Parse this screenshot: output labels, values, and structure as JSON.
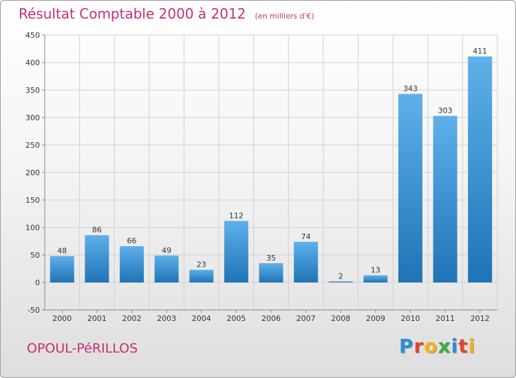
{
  "header": {
    "title": "Résultat Comptable 2000 à 2012",
    "unit": "(en milliers d'€)"
  },
  "footer": {
    "commune": "OPOUL-PéRILLOS",
    "logo_letters": [
      {
        "char": "P",
        "color": "#2e8fd6"
      },
      {
        "char": "r",
        "color": "#e2462c"
      },
      {
        "char": "o",
        "color": "#f2b21b"
      },
      {
        "char": "x",
        "color": "#3aa843"
      },
      {
        "char": "i",
        "color": "#2e8fd6"
      },
      {
        "char": "t",
        "color": "#e2462c"
      },
      {
        "char": "i",
        "color": "#f2b21b"
      }
    ]
  },
  "chart_data": {
    "type": "bar",
    "title": "Résultat Comptable 2000 à 2012",
    "subtitle": "(en milliers d'€)",
    "categories": [
      "2000",
      "2001",
      "2002",
      "2003",
      "2004",
      "2005",
      "2006",
      "2007",
      "2008",
      "2009",
      "2010",
      "2011",
      "2012"
    ],
    "values": [
      48,
      86,
      66,
      49,
      23,
      112,
      35,
      74,
      2,
      13,
      343,
      303,
      411
    ],
    "ylim": [
      -50,
      450
    ],
    "yticks": [
      -50,
      0,
      50,
      100,
      150,
      200,
      250,
      300,
      350,
      400,
      450
    ],
    "grid": true,
    "colors": {
      "bar_light": "#5fb0ea",
      "bar_dark": "#1f74b6",
      "axis": "#888888",
      "grid": "#d0d0d0",
      "label": "#333333"
    }
  }
}
